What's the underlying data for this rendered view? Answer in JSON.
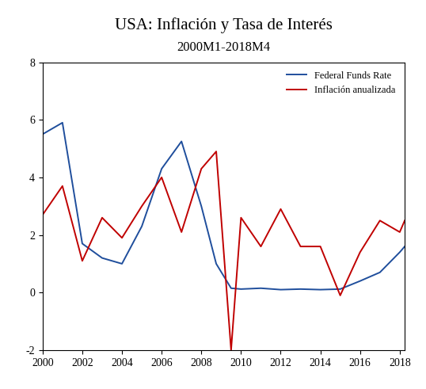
{
  "chart_data": {
    "type": "line",
    "title": "USA: Inflación y Tasa de Interés",
    "subtitle": "2000M1-2018M4",
    "x": [
      2000,
      2001,
      2002,
      2003,
      2004,
      2005,
      2006,
      2007,
      2008,
      2008.75,
      2009.5,
      2010,
      2011,
      2012,
      2013,
      2014,
      2015,
      2016,
      2017,
      2018,
      2018.25
    ],
    "series": [
      {
        "name": "Federal Funds Rate",
        "color": "#1f4e9c",
        "values": [
          5.5,
          5.9,
          1.7,
          1.2,
          1.0,
          2.3,
          4.3,
          5.25,
          3.0,
          1.0,
          0.15,
          0.12,
          0.15,
          0.1,
          0.12,
          0.1,
          0.12,
          0.4,
          0.7,
          1.4,
          1.6
        ]
      },
      {
        "name": "Inflación anualizada",
        "color": "#c00000",
        "values": [
          2.7,
          3.7,
          1.1,
          2.6,
          1.9,
          3.0,
          4.0,
          2.1,
          4.3,
          4.9,
          -2.0,
          2.6,
          1.6,
          2.9,
          1.6,
          1.6,
          -0.1,
          1.4,
          2.5,
          2.1,
          2.5
        ]
      }
    ],
    "xlim": [
      2000,
      2018.25
    ],
    "xticks": [
      2000,
      2002,
      2004,
      2006,
      2008,
      2010,
      2012,
      2014,
      2016,
      2018
    ],
    "ylim": [
      -2,
      8
    ],
    "yticks": [
      -2,
      0,
      2,
      4,
      6,
      8
    ],
    "grid": false,
    "legend": "upper right"
  }
}
